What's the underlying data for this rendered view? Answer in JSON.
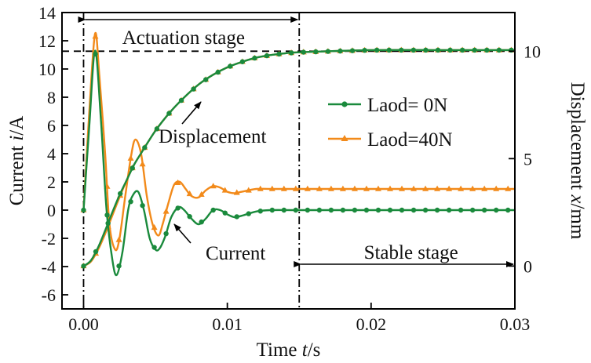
{
  "chart_data": {
    "type": "line",
    "xlabel_pre": "Time ",
    "xlabel_var": "t",
    "xlabel_post": "/s",
    "ylabel_left_pre": "Current ",
    "ylabel_left_var": "i",
    "ylabel_left_post": "/A",
    "ylabel_right_pre": "Displacement ",
    "ylabel_right_var": "x",
    "ylabel_right_post": "/mm",
    "xlim": [
      -0.0015,
      0.03
    ],
    "ylim_left": [
      -7,
      14
    ],
    "ylim_right": [
      -1.995,
      11.8
    ],
    "x_ticks": [
      0.0,
      0.01,
      0.02,
      0.03
    ],
    "x_tick_labels": [
      "0.00",
      "0.01",
      "0.02",
      "0.03"
    ],
    "y_left_ticks": [
      -6,
      -4,
      -2,
      0,
      2,
      4,
      6,
      8,
      10,
      12,
      14
    ],
    "y_left_tick_labels": [
      "-6",
      "-4",
      "-2",
      "0",
      "2",
      "4",
      "6",
      "8",
      "10",
      "12",
      "14"
    ],
    "y_right_ticks": [
      0,
      5,
      10
    ],
    "y_right_tick_labels": [
      "0",
      "5",
      "10"
    ],
    "annotations": {
      "actuation_stage": "Actuation stage",
      "stable_stage": "Stable stage",
      "displacement": "Displacement",
      "current": "Current"
    },
    "stage_boundaries_t": [
      0.0,
      0.015
    ],
    "reference_displacement_mm": 10,
    "series": [
      {
        "name": "Laod= 0N",
        "color": "#1a8a3c",
        "marker": "circle",
        "current": {
          "x": [
            0.0,
            0.0004,
            0.0008,
            0.0012,
            0.0016,
            0.002,
            0.0023,
            0.0027,
            0.0031,
            0.0034,
            0.0038,
            0.0042,
            0.0046,
            0.005,
            0.0053,
            0.0057,
            0.0061,
            0.0066,
            0.007,
            0.0075,
            0.008,
            0.0085,
            0.009,
            0.0095,
            0.01,
            0.0105,
            0.011,
            0.012,
            0.013,
            0.015,
            0.02,
            0.025,
            0.03
          ],
          "y": [
            0,
            6.0,
            11.3,
            6.5,
            0.0,
            -3.5,
            -4.6,
            -3.0,
            0.0,
            1.0,
            1.3,
            0.0,
            -2.0,
            -2.8,
            -2.7,
            -1.8,
            -0.5,
            0.2,
            0.0,
            -0.6,
            -1.0,
            -0.6,
            0.0,
            0.0,
            -0.3,
            -0.5,
            -0.4,
            -0.1,
            0.0,
            0.0,
            0.0,
            0.0,
            0.0
          ]
        },
        "displacement": {
          "x": [
            0.0,
            0.0005,
            0.001,
            0.0015,
            0.002,
            0.0025,
            0.003,
            0.0035,
            0.004,
            0.005,
            0.006,
            0.007,
            0.008,
            0.009,
            0.01,
            0.011,
            0.012,
            0.013,
            0.014,
            0.015,
            0.02,
            0.025,
            0.03
          ],
          "y": [
            0.0,
            0.25,
            0.85,
            1.65,
            2.5,
            3.3,
            4.0,
            4.7,
            5.25,
            6.3,
            7.15,
            7.85,
            8.45,
            8.9,
            9.25,
            9.5,
            9.7,
            9.82,
            9.9,
            9.95,
            10.05,
            10.05,
            10.05
          ]
        }
      },
      {
        "name": "Laod=40N",
        "color": "#f28a1a",
        "marker": "triangle",
        "current": {
          "x": [
            0.0,
            0.0004,
            0.0008,
            0.0011,
            0.0015,
            0.0018,
            0.0022,
            0.0025,
            0.0029,
            0.0033,
            0.0036,
            0.004,
            0.0044,
            0.0048,
            0.0052,
            0.0055,
            0.0059,
            0.0063,
            0.0067,
            0.0071,
            0.0075,
            0.008,
            0.0085,
            0.009,
            0.0095,
            0.01,
            0.0105,
            0.011,
            0.012,
            0.013,
            0.015,
            0.02,
            0.025,
            0.03
          ],
          "y": [
            0,
            7.0,
            12.5,
            9.5,
            4.0,
            -1.0,
            -2.8,
            -2.0,
            1.0,
            3.8,
            5.0,
            4.0,
            1.0,
            -1.0,
            -1.8,
            -1.0,
            0.5,
            1.8,
            2.0,
            1.5,
            1.0,
            0.9,
            1.4,
            1.7,
            1.6,
            1.3,
            1.2,
            1.3,
            1.5,
            1.5,
            1.5,
            1.5,
            1.5,
            1.5
          ]
        },
        "displacement": {
          "x": [
            0.0,
            0.0005,
            0.001,
            0.0015,
            0.002,
            0.0025,
            0.003,
            0.0035,
            0.004,
            0.005,
            0.006,
            0.007,
            0.008,
            0.009,
            0.01,
            0.011,
            0.012,
            0.013,
            0.014,
            0.015,
            0.02,
            0.025,
            0.03
          ],
          "y": [
            0.0,
            0.2,
            0.75,
            1.5,
            2.35,
            3.2,
            4.0,
            4.7,
            5.25,
            6.3,
            7.15,
            7.85,
            8.45,
            8.9,
            9.25,
            9.5,
            9.7,
            9.82,
            9.9,
            9.95,
            10.05,
            10.05,
            10.05
          ]
        }
      }
    ]
  }
}
